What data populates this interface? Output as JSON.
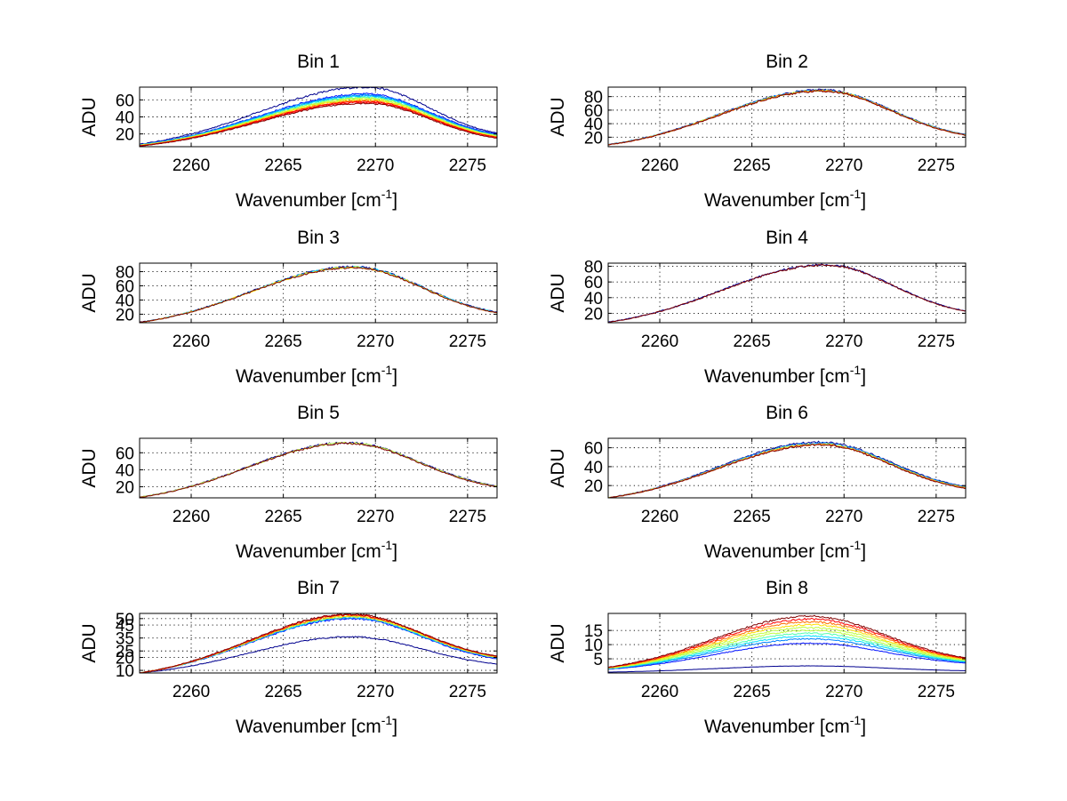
{
  "figure": {
    "background": "#ffffff"
  },
  "colors": [
    "#00008f",
    "#0010ff",
    "#0080ff",
    "#00dfff",
    "#4fffaf",
    "#bfff40",
    "#ffdf00",
    "#ff7000",
    "#ff0000",
    "#800000"
  ],
  "chart_data": [
    {
      "type": "line",
      "title": "Bin 1",
      "xlabel": "Wavenumber [cm",
      "xlabel_sup": "-1",
      "xlabel_close": "]",
      "ylabel": "ADU",
      "xlim": [
        2257.2,
        2276.6
      ],
      "ylim": [
        5,
        75
      ],
      "xticks": [
        2260,
        2265,
        2270,
        2275
      ],
      "xtick_labels": [
        "2260",
        "2265",
        "2270",
        "2275"
      ],
      "yticks": [
        20,
        40,
        60
      ],
      "ytick_labels": [
        "20",
        "40",
        "60"
      ],
      "grid": true,
      "series_peaks": [
        75,
        67,
        66,
        65,
        64,
        63,
        62,
        61,
        60,
        59,
        58,
        57,
        56
      ],
      "series_edge_right": [
        21,
        20,
        19,
        19,
        18,
        18,
        18,
        17,
        17,
        16,
        16,
        16,
        15
      ],
      "series_center": 2269.5,
      "series_width": 5.4
    },
    {
      "type": "line",
      "title": "Bin 2",
      "xlabel": "Wavenumber [cm",
      "xlabel_sup": "-1",
      "xlabel_close": "]",
      "ylabel": "ADU",
      "xlim": [
        2257.2,
        2276.6
      ],
      "ylim": [
        6,
        94
      ],
      "xticks": [
        2260,
        2265,
        2270,
        2275
      ],
      "xtick_labels": [
        "2260",
        "2265",
        "2270",
        "2275"
      ],
      "yticks": [
        20,
        40,
        60,
        80
      ],
      "ytick_labels": [
        "20",
        "40",
        "60",
        "80"
      ],
      "grid": true,
      "series_peaks": [
        90,
        89.5,
        89,
        88.5,
        88
      ],
      "series_edge_right": [
        24,
        24,
        23.5,
        23,
        23
      ],
      "series_center": 2268.8,
      "series_width": 5.5
    },
    {
      "type": "line",
      "title": "Bin 3",
      "xlabel": "Wavenumber [cm",
      "xlabel_sup": "-1",
      "xlabel_close": "]",
      "ylabel": "ADU",
      "xlim": [
        2257.2,
        2276.6
      ],
      "ylim": [
        8,
        92
      ],
      "xticks": [
        2260,
        2265,
        2270,
        2275
      ],
      "xtick_labels": [
        "2260",
        "2265",
        "2270",
        "2275"
      ],
      "yticks": [
        20,
        40,
        60,
        80
      ],
      "ytick_labels": [
        "20",
        "40",
        "60",
        "80"
      ],
      "grid": true,
      "series_peaks": [
        87,
        86.5,
        86,
        85.5
      ],
      "series_edge_right": [
        23,
        22.5,
        22,
        22
      ],
      "series_center": 2268.8,
      "series_width": 5.5
    },
    {
      "type": "line",
      "title": "Bin 4",
      "xlabel": "Wavenumber [cm",
      "xlabel_sup": "-1",
      "xlabel_close": "]",
      "ylabel": "ADU",
      "xlim": [
        2257.2,
        2276.6
      ],
      "ylim": [
        8,
        84
      ],
      "xticks": [
        2260,
        2265,
        2270,
        2275
      ],
      "xtick_labels": [
        "2260",
        "2265",
        "2270",
        "2275"
      ],
      "yticks": [
        20,
        40,
        60,
        80
      ],
      "ytick_labels": [
        "20",
        "40",
        "60",
        "80"
      ],
      "grid": true,
      "series_peaks": [
        82,
        81.5
      ],
      "series_edge_right": [
        23,
        22.5
      ],
      "series_center": 2269.0,
      "series_width": 5.5
    },
    {
      "type": "line",
      "title": "Bin 5",
      "xlabel": "Wavenumber [cm",
      "xlabel_sup": "-1",
      "xlabel_close": "]",
      "ylabel": "ADU",
      "xlim": [
        2257.2,
        2276.6
      ],
      "ylim": [
        7,
        77
      ],
      "xticks": [
        2260,
        2265,
        2270,
        2275
      ],
      "xtick_labels": [
        "2260",
        "2265",
        "2270",
        "2275"
      ],
      "yticks": [
        20,
        40,
        60
      ],
      "ytick_labels": [
        "20",
        "40",
        "60"
      ],
      "grid": true,
      "series_peaks": [
        72,
        71.5,
        71
      ],
      "series_edge_right": [
        21,
        20.5,
        20
      ],
      "series_center": 2268.5,
      "series_width": 5.3
    },
    {
      "type": "line",
      "title": "Bin 6",
      "xlabel": "Wavenumber [cm",
      "xlabel_sup": "-1",
      "xlabel_close": "]",
      "ylabel": "ADU",
      "xlim": [
        2257.2,
        2276.6
      ],
      "ylim": [
        7,
        70
      ],
      "xticks": [
        2260,
        2265,
        2270,
        2275
      ],
      "xtick_labels": [
        "2260",
        "2265",
        "2270",
        "2275"
      ],
      "yticks": [
        20,
        40,
        60
      ],
      "ytick_labels": [
        "20",
        "40",
        "60"
      ],
      "grid": true,
      "series_peaks": [
        66,
        65,
        64,
        63.5,
        63
      ],
      "series_edge_right": [
        19,
        18.5,
        18,
        17.5,
        17
      ],
      "series_center": 2268.7,
      "series_width": 5.3
    },
    {
      "type": "line",
      "title": "Bin 7",
      "xlabel": "Wavenumber [cm",
      "xlabel_sup": "-1",
      "xlabel_close": "]",
      "ylabel": "ADU",
      "xlim": [
        2257.2,
        2276.6
      ],
      "ylim": [
        8,
        54
      ],
      "xticks": [
        2260,
        2265,
        2270,
        2275
      ],
      "xtick_labels": [
        "2260",
        "2265",
        "2270",
        "2275"
      ],
      "yticks": [
        10,
        20,
        25,
        35,
        45,
        50
      ],
      "ytick_labels": [
        "10",
        "20",
        "25",
        "35",
        "45",
        "50"
      ],
      "grid": true,
      "series_peaks": [
        36,
        50,
        50.5,
        51,
        51.5,
        52,
        52.5,
        53,
        53.5
      ],
      "series_edge_right": [
        15,
        19,
        19.5,
        20,
        20,
        20.5,
        20.5,
        21,
        21
      ],
      "series_center": 2268.7,
      "series_width": 5.6
    },
    {
      "type": "line",
      "title": "Bin 8",
      "xlabel": "Wavenumber [cm",
      "xlabel_sup": "-1",
      "xlabel_close": "]",
      "ylabel": "ADU",
      "xlim": [
        2257.2,
        2276.6
      ],
      "ylim": [
        0,
        21
      ],
      "xticks": [
        2260,
        2265,
        2270,
        2275
      ],
      "xtick_labels": [
        "2260",
        "2265",
        "2270",
        "2275"
      ],
      "yticks": [
        5,
        10,
        15
      ],
      "ytick_labels": [
        "5",
        "10",
        "15"
      ],
      "grid": true,
      "series_peaks": [
        2.5,
        10.5,
        12,
        13,
        14,
        15,
        16,
        17,
        18,
        19,
        20
      ],
      "series_edge_right": [
        0.8,
        3.5,
        3.8,
        4.0,
        4.2,
        4.4,
        4.6,
        4.8,
        5.0,
        5.2,
        5.4
      ],
      "series_center": 2268.2,
      "series_width": 5.6
    }
  ]
}
